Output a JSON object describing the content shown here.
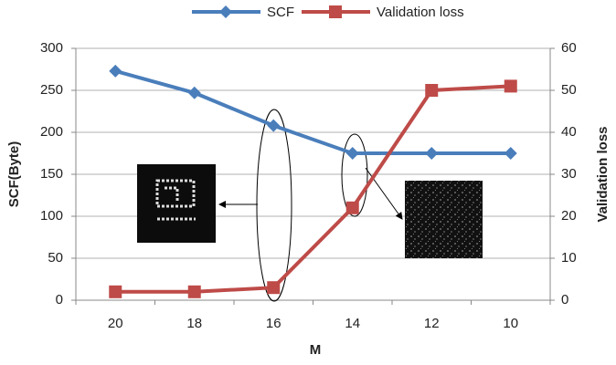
{
  "chart_data": {
    "type": "line",
    "x_label": "M",
    "y_label": "SCF(Byte)",
    "y2_label": "Validation loss",
    "categories": [
      "20",
      "18",
      "16",
      "14",
      "12",
      "10"
    ],
    "series": [
      {
        "name": "SCF",
        "color": "#4a7ebb",
        "marker": "diamond",
        "values": [
          273,
          247,
          208,
          175,
          175,
          175
        ]
      },
      {
        "name": "Validation loss",
        "color": "#be4b48",
        "marker": "square",
        "axis": "y2",
        "values": [
          2,
          2,
          3,
          22,
          50,
          51
        ]
      }
    ],
    "ylim": [
      0,
      300
    ],
    "yticks": [
      0,
      50,
      100,
      150,
      200,
      250,
      300
    ],
    "y2lim": [
      0,
      60
    ],
    "y2ticks": [
      0,
      10,
      20,
      30,
      40,
      50,
      60
    ],
    "grid": true,
    "legend": "top"
  }
}
